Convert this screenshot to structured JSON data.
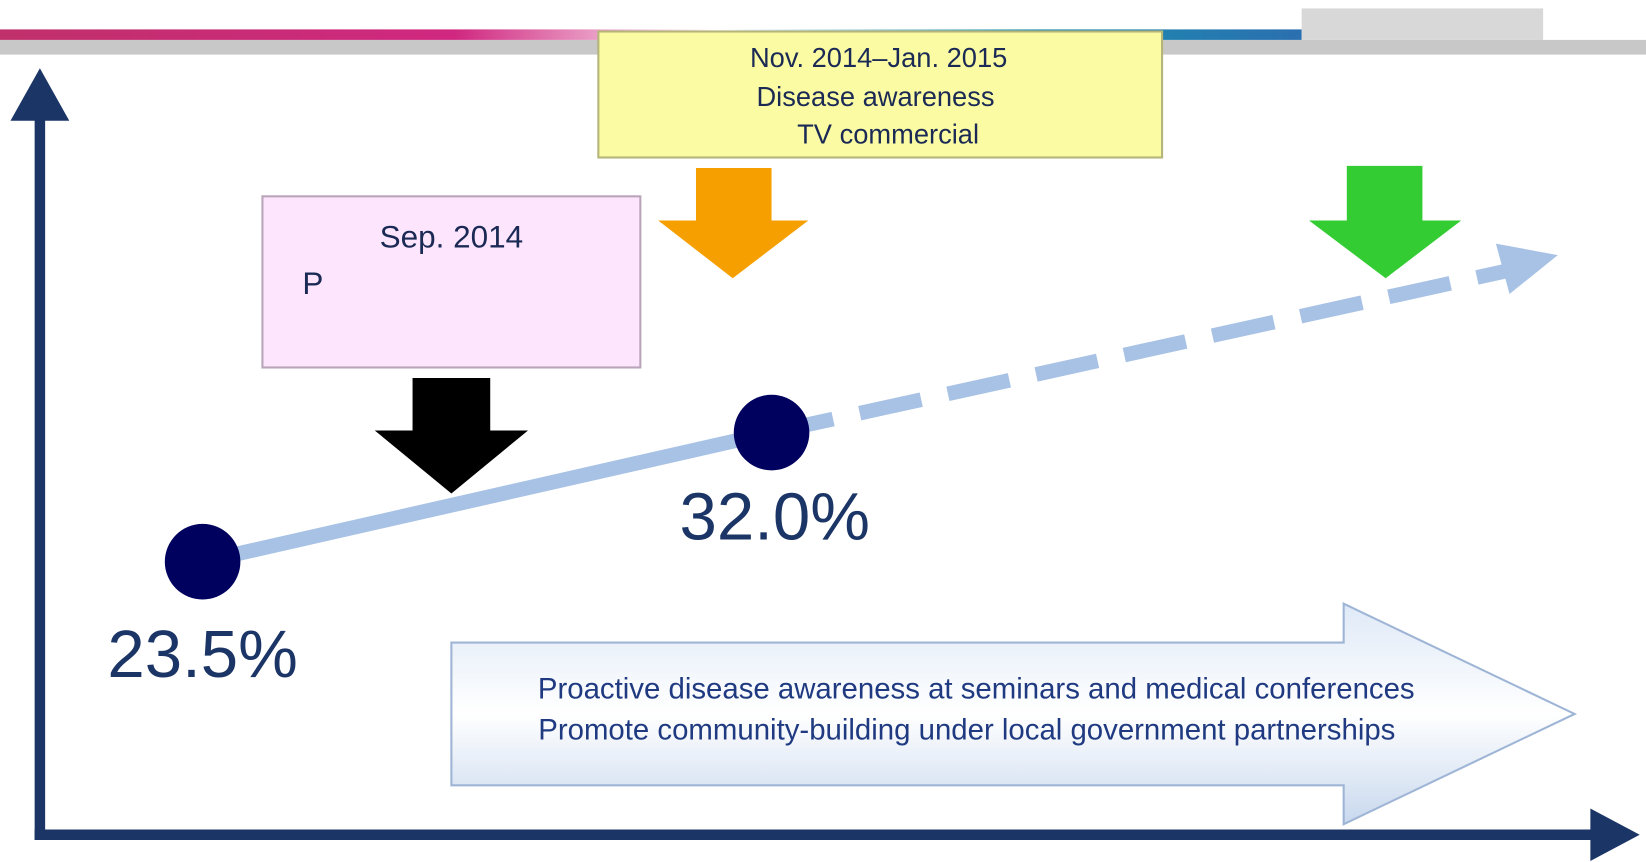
{
  "events": [
    {
      "label_lines": [
        "Nov. 2014–Jan. 2015",
        "Disease awareness",
        "TV commercial"
      ]
    },
    {
      "label_lines": [
        "Sep. 2014",
        "P"
      ]
    }
  ],
  "data_labels": [
    "23.5%",
    "32.0%"
  ],
  "banner": {
    "lines": [
      "Proactive disease awareness at seminars and medical conferences",
      "Promote community-building under local government partnerships"
    ]
  }
}
